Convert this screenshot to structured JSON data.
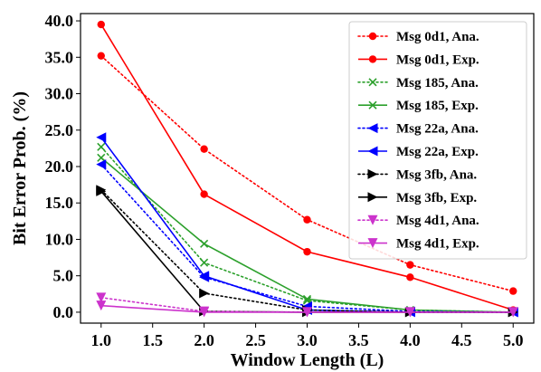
{
  "chart_data": {
    "type": "line",
    "title": "",
    "xlabel": "Window Length (L)",
    "ylabel": "Bit Error Prob. (%)",
    "xlim": [
      0.8,
      5.2
    ],
    "ylim": [
      -1.5,
      41.0
    ],
    "xticks": [
      1.0,
      1.5,
      2.0,
      2.5,
      3.0,
      3.5,
      4.0,
      4.5,
      5.0
    ],
    "yticks": [
      0.0,
      5.0,
      10.0,
      15.0,
      20.0,
      25.0,
      30.0,
      35.0,
      40.0
    ],
    "xtick_labels": [
      "1.0",
      "1.5",
      "2.0",
      "2.5",
      "3.0",
      "3.5",
      "4.0",
      "4.5",
      "5.0"
    ],
    "ytick_labels": [
      "0.0",
      "5.0",
      "10.0",
      "15.0",
      "20.0",
      "25.0",
      "30.0",
      "35.0",
      "40.0"
    ],
    "grid": false,
    "legend_position": "top-right",
    "series": [
      {
        "name": "Msg 0d1, Ana.",
        "color": "#ff0000",
        "style": "dotted",
        "marker": "circle",
        "x": [
          1,
          2,
          3,
          4,
          5
        ],
        "values": [
          35.2,
          22.4,
          12.7,
          6.5,
          2.9
        ]
      },
      {
        "name": "Msg 0d1, Exp.",
        "color": "#ff0000",
        "style": "solid",
        "marker": "circle",
        "x": [
          1,
          2,
          3,
          4,
          5
        ],
        "values": [
          39.5,
          16.2,
          8.3,
          4.8,
          0.3
        ]
      },
      {
        "name": "Msg 185, Ana.",
        "color": "#2ca02c",
        "style": "dotted",
        "marker": "x",
        "x": [
          1,
          2,
          3,
          4,
          5
        ],
        "values": [
          22.7,
          6.8,
          1.6,
          0.3,
          0.0
        ]
      },
      {
        "name": "Msg 185, Exp.",
        "color": "#2ca02c",
        "style": "solid",
        "marker": "x",
        "x": [
          1,
          2,
          3,
          4,
          5
        ],
        "values": [
          21.2,
          9.4,
          1.8,
          0.3,
          0.0
        ]
      },
      {
        "name": "Msg 22a, Ana.",
        "color": "#0000ff",
        "style": "dotted",
        "marker": "triangle-left",
        "x": [
          1,
          2,
          3,
          4,
          5
        ],
        "values": [
          20.3,
          4.8,
          0.8,
          0.1,
          0.0
        ]
      },
      {
        "name": "Msg 22a, Exp.",
        "color": "#0000ff",
        "style": "solid",
        "marker": "triangle-left",
        "x": [
          1,
          2,
          3,
          4,
          5
        ],
        "values": [
          24.0,
          5.0,
          0.3,
          0.0,
          0.0
        ]
      },
      {
        "name": "Msg 3fb, Ana.",
        "color": "#000000",
        "style": "dotted",
        "marker": "triangle-right",
        "x": [
          1,
          2,
          3,
          4,
          5
        ],
        "values": [
          16.8,
          2.6,
          0.3,
          0.0,
          0.0
        ]
      },
      {
        "name": "Msg 3fb, Exp.",
        "color": "#000000",
        "style": "solid",
        "marker": "triangle-right",
        "x": [
          1,
          2,
          3,
          4,
          5
        ],
        "values": [
          16.6,
          0.1,
          0.0,
          0.0,
          0.0
        ]
      },
      {
        "name": "Msg 4d1, Ana.",
        "color": "#cc33cc",
        "style": "dotted",
        "marker": "triangle-down",
        "x": [
          1,
          2,
          3,
          4,
          5
        ],
        "values": [
          2.0,
          0.1,
          0.0,
          0.0,
          0.0
        ]
      },
      {
        "name": "Msg 4d1, Exp.",
        "color": "#cc33cc",
        "style": "solid",
        "marker": "triangle-down",
        "x": [
          1,
          2,
          3,
          4,
          5
        ],
        "values": [
          0.9,
          0.0,
          0.0,
          0.0,
          0.0
        ]
      }
    ]
  }
}
